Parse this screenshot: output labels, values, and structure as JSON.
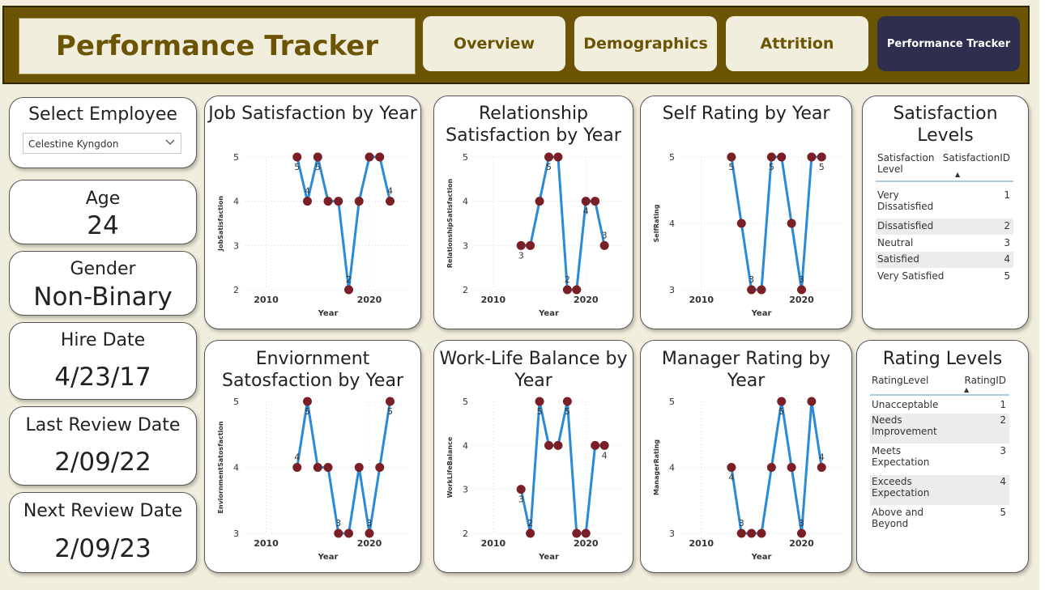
{
  "header": {
    "title": "Performance Tracker",
    "nav": [
      {
        "label": "Overview"
      },
      {
        "label": "Demographics"
      },
      {
        "label": "Attrition"
      },
      {
        "label": "Performance Tracker",
        "active": true
      }
    ]
  },
  "employee": {
    "select_label": "Select Employee",
    "selected": "Celestine Kyngdon",
    "age_label": "Age",
    "age": "24",
    "gender_label": "Gender",
    "gender": "Non-Binary",
    "hire_label": "Hire Date",
    "hire_date": "4/23/17",
    "last_review_label": "Last Review Date",
    "last_review_date": "2/09/22",
    "next_review_label": "Next Review Date",
    "next_review_date": "2/09/23"
  },
  "colors": {
    "line": "#2b8ad6",
    "marker": "#7a1f26",
    "accent": "#6b5505",
    "active_nav": "#2e2f4e"
  },
  "chart_data": [
    {
      "type": "line",
      "title": "Job Satisfaction by Year",
      "xlabel": "Year",
      "ylabel": "JobSatisfaction",
      "xticks": [
        2010,
        2020
      ],
      "yticks": [
        2,
        3,
        4,
        5
      ],
      "ylim": [
        2,
        5
      ],
      "xlim": [
        2008,
        2024
      ],
      "x": [
        2013,
        2014,
        2015,
        2016,
        2017,
        2018,
        2019,
        2020,
        2021,
        2022
      ],
      "y": [
        5,
        4,
        5,
        4,
        4,
        2,
        4,
        5,
        5,
        4
      ],
      "labels": [
        "5",
        "4",
        "5",
        "",
        "",
        "2",
        "",
        "",
        "",
        "4"
      ]
    },
    {
      "type": "line",
      "title": "Relationship Satisfaction by Year",
      "xlabel": "Year",
      "ylabel": "RelationshipSatisfaction",
      "xticks": [
        2010,
        2020
      ],
      "yticks": [
        2,
        3,
        4,
        5
      ],
      "ylim": [
        2,
        5
      ],
      "xlim": [
        2008,
        2024
      ],
      "x": [
        2013,
        2014,
        2015,
        2016,
        2017,
        2018,
        2019,
        2020,
        2021,
        2022
      ],
      "y": [
        3,
        3,
        4,
        5,
        5,
        2,
        2,
        4,
        4,
        3
      ],
      "labels": [
        "3",
        "",
        "",
        "5",
        "",
        "2",
        "",
        "4",
        "",
        "3"
      ]
    },
    {
      "type": "line",
      "title": "Self Rating by Year",
      "xlabel": "Year",
      "ylabel": "SelfRating",
      "xticks": [
        2010,
        2020
      ],
      "yticks": [
        3,
        4,
        5
      ],
      "ylim": [
        3,
        5
      ],
      "xlim": [
        2008,
        2024
      ],
      "x": [
        2013,
        2014,
        2015,
        2016,
        2017,
        2018,
        2019,
        2020,
        2021,
        2022
      ],
      "y": [
        5,
        4,
        3,
        3,
        5,
        5,
        4,
        3,
        5,
        5
      ],
      "labels": [
        "5",
        "",
        "3",
        "",
        "5",
        "",
        "",
        "3",
        "",
        "5"
      ]
    },
    {
      "type": "line",
      "title": "Enviornment Satosfaction by Year",
      "xlabel": "Year",
      "ylabel": "EnviornmentSatosfaction",
      "xticks": [
        2010,
        2020
      ],
      "yticks": [
        3,
        4,
        5
      ],
      "ylim": [
        3,
        5
      ],
      "xlim": [
        2008,
        2024
      ],
      "x": [
        2013,
        2014,
        2015,
        2016,
        2017,
        2018,
        2019,
        2020,
        2021,
        2022
      ],
      "y": [
        4,
        5,
        4,
        4,
        3,
        3,
        4,
        3,
        4,
        5
      ],
      "labels": [
        "4",
        "5",
        "",
        "",
        "3",
        "",
        "",
        "3",
        "",
        "5"
      ]
    },
    {
      "type": "line",
      "title": "Work-Life Balance by Year",
      "xlabel": "Year",
      "ylabel": "WorkLifeBalance",
      "xticks": [
        2010,
        2020
      ],
      "yticks": [
        2,
        3,
        4,
        5
      ],
      "ylim": [
        2,
        5
      ],
      "xlim": [
        2008,
        2024
      ],
      "x": [
        2013,
        2014,
        2015,
        2016,
        2017,
        2018,
        2019,
        2020,
        2021,
        2022
      ],
      "y": [
        3,
        2,
        5,
        4,
        4,
        5,
        2,
        2,
        4,
        4
      ],
      "labels": [
        "3",
        "2",
        "5",
        "",
        "",
        "5",
        "",
        "",
        "",
        "4"
      ]
    },
    {
      "type": "line",
      "title": "Manager Rating by Year",
      "xlabel": "Year",
      "ylabel": "ManagerRating",
      "xticks": [
        2010,
        2020
      ],
      "yticks": [
        3,
        4,
        5
      ],
      "ylim": [
        3,
        5
      ],
      "xlim": [
        2008,
        2024
      ],
      "x": [
        2013,
        2014,
        2015,
        2016,
        2017,
        2018,
        2019,
        2020,
        2021,
        2022
      ],
      "y": [
        4,
        3,
        3,
        3,
        4,
        5,
        4,
        3,
        5,
        4
      ],
      "labels": [
        "4",
        "3",
        "",
        "",
        "",
        "5",
        "",
        "3",
        "",
        "4"
      ]
    }
  ],
  "satisfaction_table": {
    "title": "Satisfaction Levels",
    "headers": [
      "Satisfaction Level",
      "SatisfactionID"
    ],
    "rows": [
      [
        "Very Dissatisfied",
        "1"
      ],
      [
        "Dissatisfied",
        "2"
      ],
      [
        "Neutral",
        "3"
      ],
      [
        "Satisfied",
        "4"
      ],
      [
        "Very Satisfied",
        "5"
      ]
    ]
  },
  "rating_table": {
    "title": "Rating Levels",
    "headers": [
      "RatingLevel",
      "RatingID"
    ],
    "rows": [
      [
        "Unacceptable",
        "1"
      ],
      [
        "Needs Improvement",
        "2"
      ],
      [
        "Meets Expectation",
        "3"
      ],
      [
        "Exceeds Expectation",
        "4"
      ],
      [
        "Above and Beyond",
        "5"
      ]
    ]
  }
}
